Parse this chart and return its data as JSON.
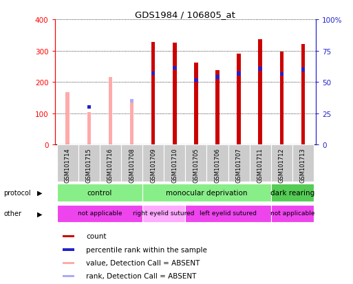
{
  "title": "GDS1984 / 106805_at",
  "samples": [
    "GSM101714",
    "GSM101715",
    "GSM101716",
    "GSM101708",
    "GSM101709",
    "GSM101710",
    "GSM101705",
    "GSM101706",
    "GSM101707",
    "GSM101711",
    "GSM101712",
    "GSM101713"
  ],
  "count_values": [
    null,
    null,
    null,
    null,
    327,
    326,
    261,
    238,
    290,
    336,
    296,
    320
  ],
  "rank_values": [
    null,
    120,
    null,
    null,
    228,
    245,
    206,
    215,
    226,
    242,
    225,
    240
  ],
  "absent_value_values": [
    168,
    103,
    215,
    140,
    null,
    null,
    null,
    null,
    null,
    null,
    null,
    null
  ],
  "absent_rank_values": [
    null,
    120,
    null,
    140,
    null,
    null,
    null,
    null,
    null,
    null,
    null,
    null
  ],
  "count_color": "#cc0000",
  "rank_color": "#2222cc",
  "absent_value_color": "#ffaaaa",
  "absent_rank_color": "#aaaaff",
  "ylim_left": [
    0,
    400
  ],
  "ylim_right": [
    0,
    100
  ],
  "yticks_left": [
    0,
    100,
    200,
    300,
    400
  ],
  "yticks_right": [
    0,
    25,
    50,
    75,
    100
  ],
  "ytick_labels_right": [
    "0",
    "25",
    "50",
    "75",
    "100%"
  ],
  "protocol_groups": [
    {
      "label": "control",
      "start": 0,
      "end": 3,
      "color": "#88ee88"
    },
    {
      "label": "monocular deprivation",
      "start": 4,
      "end": 9,
      "color": "#88ee88"
    },
    {
      "label": "dark rearing",
      "start": 10,
      "end": 11,
      "color": "#55cc55"
    }
  ],
  "other_groups": [
    {
      "label": "not applicable",
      "start": 0,
      "end": 3,
      "color": "#ee44ee"
    },
    {
      "label": "right eyelid sutured",
      "start": 4,
      "end": 5,
      "color": "#ffaaff"
    },
    {
      "label": "left eyelid sutured",
      "start": 6,
      "end": 9,
      "color": "#ee44ee"
    },
    {
      "label": "not applicable",
      "start": 10,
      "end": 11,
      "color": "#ee44ee"
    }
  ],
  "legend_items": [
    {
      "label": "count",
      "color": "#cc0000"
    },
    {
      "label": "percentile rank within the sample",
      "color": "#2222cc"
    },
    {
      "label": "value, Detection Call = ABSENT",
      "color": "#ffaaaa"
    },
    {
      "label": "rank, Detection Call = ABSENT",
      "color": "#aaaaff"
    }
  ]
}
